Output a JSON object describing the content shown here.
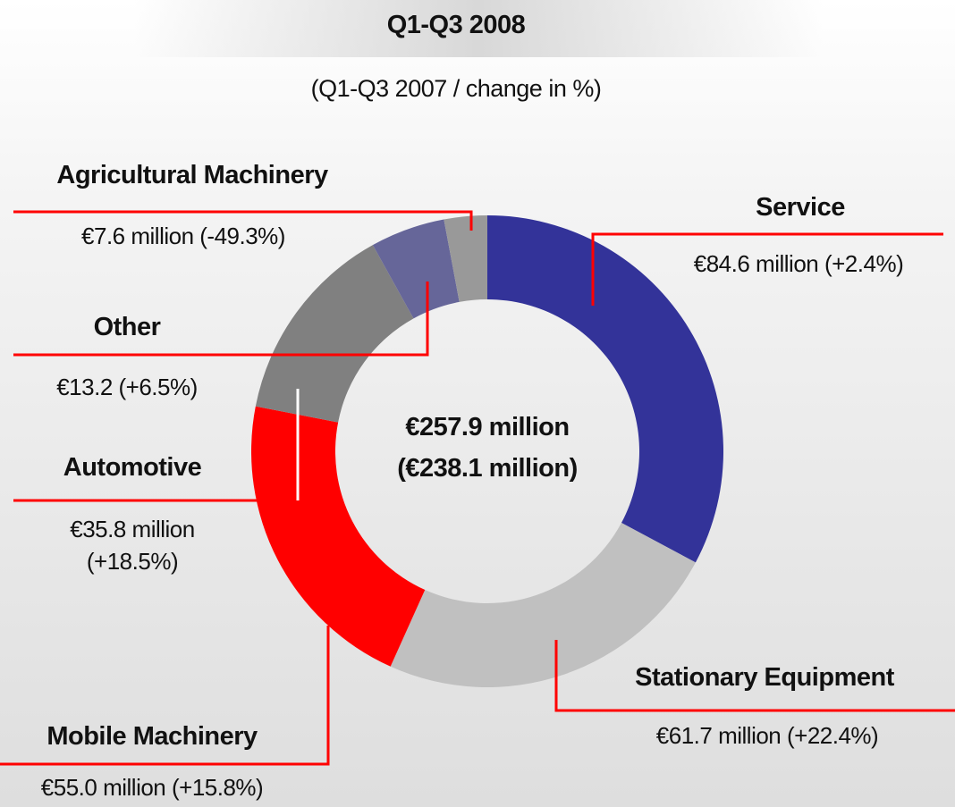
{
  "chart_data": {
    "type": "donut",
    "title": "Q1-Q3 2008",
    "subtitle": "(Q1-Q3 2007 / change in %)",
    "center_label": "€257.9 million",
    "center_sublabel": "(€238.1 million)",
    "categories": [
      "Service",
      "Stationary Equipment",
      "Mobile Machinery",
      "Automotive",
      "Other",
      "Agricultural Machinery"
    ],
    "values": [
      84.6,
      61.7,
      55.0,
      35.8,
      13.2,
      7.6
    ],
    "value_labels": [
      "€84.6 million (+2.4%)",
      "€61.7 million (+22.4%)",
      "€55.0 million (+15.8%)",
      "€35.8 million (+18.5%)",
      "€13.2 (+6.5%)",
      "€7.6 million (-49.3%)"
    ],
    "colors": [
      "#333399",
      "#c0c0c0",
      "#ff0000",
      "#808080",
      "#666699",
      "#999999"
    ]
  }
}
